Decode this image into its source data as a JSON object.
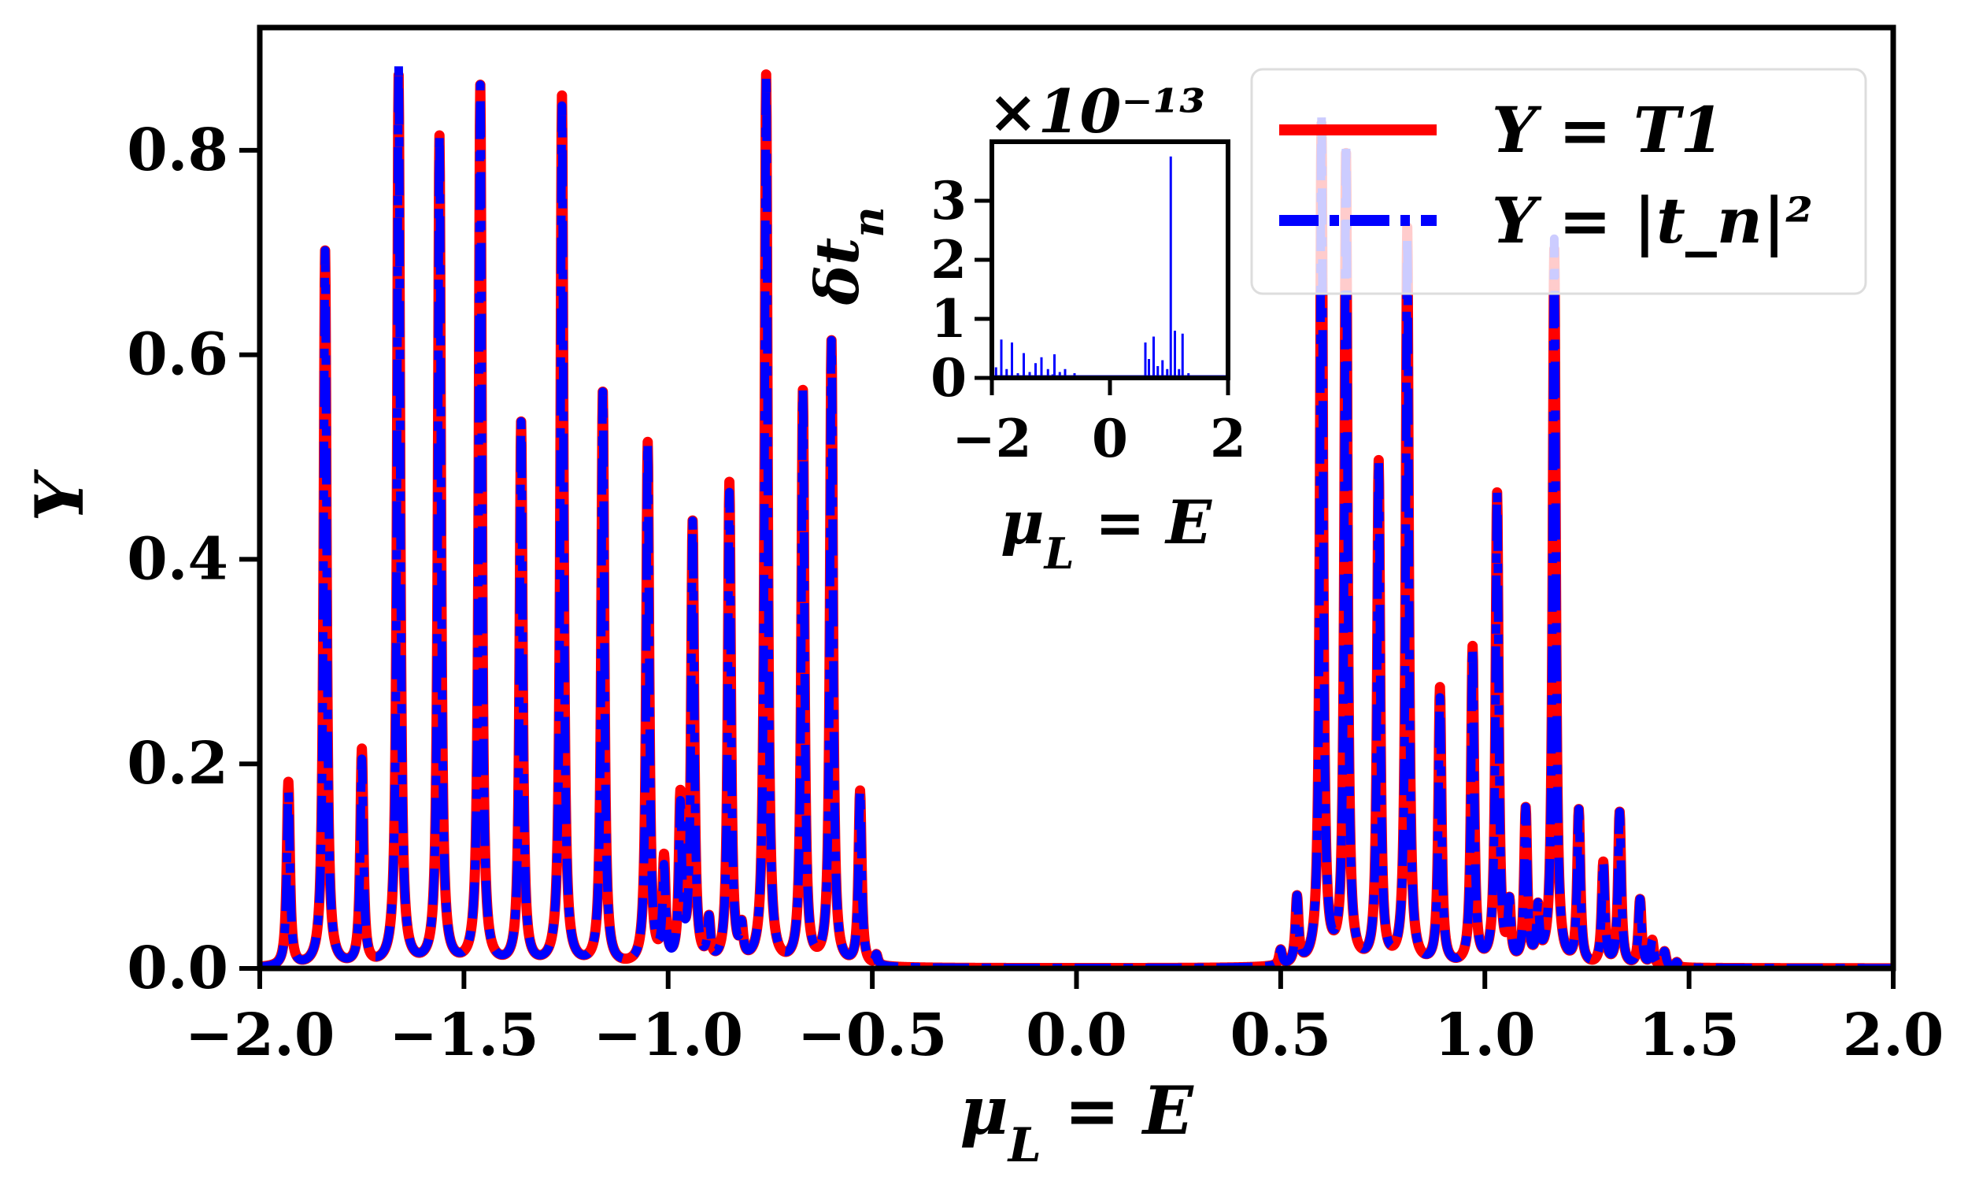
{
  "chart_data": [
    {
      "type": "line",
      "role": "main",
      "xlabel": "μ_L = E",
      "ylabel": "Y",
      "xlim": [
        -2.0,
        2.0
      ],
      "ylim": [
        0.0,
        0.92
      ],
      "xticks": [
        -2.0,
        -1.5,
        -1.0,
        -0.5,
        0.0,
        0.5,
        1.0,
        1.5,
        2.0
      ],
      "xtick_labels": [
        "−2.0",
        "−1.5",
        "−1.0",
        "−0.5",
        "0.0",
        "0.5",
        "1.0",
        "1.5",
        "2.0"
      ],
      "yticks": [
        0.0,
        0.2,
        0.4,
        0.6,
        0.8
      ],
      "ytick_labels": [
        "0.0",
        "0.2",
        "0.4",
        "0.6",
        "0.8"
      ],
      "grid": false,
      "legend_position": "top-right",
      "series": [
        {
          "name": "Y = T1",
          "color": "#ff0000",
          "style": "solid",
          "peaks_x": [
            -1.93,
            -1.84,
            -1.75,
            -1.66,
            -1.56,
            -1.46,
            -1.36,
            -1.26,
            -1.16,
            -1.05,
            -1.01,
            -0.97,
            -0.94,
            -0.9,
            -0.85,
            -0.82,
            -0.76,
            -0.67,
            -0.6,
            -0.53,
            -0.49,
            0.5,
            0.54,
            0.6,
            0.66,
            0.74,
            0.81,
            0.89,
            0.97,
            1.03,
            1.06,
            1.1,
            1.13,
            1.17,
            1.23,
            1.29,
            1.33,
            1.38,
            1.41,
            1.44,
            1.47
          ],
          "peaks_y": [
            0.18,
            0.7,
            0.21,
            0.87,
            0.81,
            0.86,
            0.53,
            0.85,
            0.56,
            0.51,
            0.1,
            0.16,
            0.43,
            0.04,
            0.47,
            0.03,
            0.87,
            0.56,
            0.61,
            0.17,
            0.01,
            0.015,
            0.065,
            0.82,
            0.79,
            0.49,
            0.72,
            0.27,
            0.31,
            0.46,
            0.055,
            0.15,
            0.05,
            0.7,
            0.15,
            0.1,
            0.15,
            0.065,
            0.025,
            0.015,
            0.005
          ]
        },
        {
          "name": "Y = |t_n|²",
          "color": "#0000ff",
          "style": "dashdot",
          "peaks_x": [
            -1.93,
            -1.84,
            -1.75,
            -1.66,
            -1.56,
            -1.46,
            -1.36,
            -1.26,
            -1.16,
            -1.05,
            -1.01,
            -0.97,
            -0.94,
            -0.9,
            -0.85,
            -0.82,
            -0.76,
            -0.67,
            -0.6,
            -0.53,
            -0.49,
            0.5,
            0.54,
            0.6,
            0.66,
            0.74,
            0.81,
            0.89,
            0.97,
            1.03,
            1.06,
            1.1,
            1.13,
            1.17,
            1.23,
            1.29,
            1.33,
            1.38,
            1.41,
            1.44,
            1.47
          ],
          "peaks_y": [
            0.17,
            0.7,
            0.2,
            0.88,
            0.81,
            0.86,
            0.53,
            0.84,
            0.56,
            0.51,
            0.09,
            0.15,
            0.43,
            0.04,
            0.46,
            0.03,
            0.87,
            0.56,
            0.61,
            0.17,
            0.01,
            0.015,
            0.065,
            0.83,
            0.8,
            0.49,
            0.71,
            0.26,
            0.31,
            0.46,
            0.055,
            0.15,
            0.05,
            0.71,
            0.15,
            0.1,
            0.15,
            0.065,
            0.025,
            0.015,
            0.005
          ]
        }
      ]
    },
    {
      "type": "line",
      "role": "inset",
      "xlabel": "μ_L = E",
      "ylabel": "δt_n",
      "scale_label": "×10⁻¹³",
      "xlim": [
        -2.0,
        2.0
      ],
      "ylim": [
        0.0,
        4.0
      ],
      "xticks": [
        -2,
        0,
        2
      ],
      "xtick_labels": [
        "−2",
        "0",
        "2"
      ],
      "yticks": [
        0,
        1,
        2,
        3
      ],
      "ytick_labels": [
        "0",
        "1",
        "2",
        "3"
      ],
      "series": [
        {
          "name": "δt_n",
          "color": "#0000ff",
          "x": [
            -1.93,
            -1.84,
            -1.75,
            -1.66,
            -1.56,
            -1.46,
            -1.36,
            -1.26,
            -1.16,
            -1.05,
            -0.97,
            -0.94,
            -0.85,
            -0.76,
            -0.6,
            0.6,
            0.66,
            0.74,
            0.81,
            0.89,
            0.97,
            1.03,
            1.1,
            1.17,
            1.23,
            1.33
          ],
          "y": [
            0.18,
            0.65,
            0.15,
            0.6,
            0.08,
            0.42,
            0.1,
            0.25,
            0.35,
            0.15,
            0.06,
            0.4,
            0.1,
            0.15,
            0.08,
            0.6,
            0.32,
            0.7,
            0.2,
            0.3,
            0.15,
            3.75,
            0.8,
            0.15,
            0.75,
            0.08
          ]
        }
      ]
    }
  ]
}
